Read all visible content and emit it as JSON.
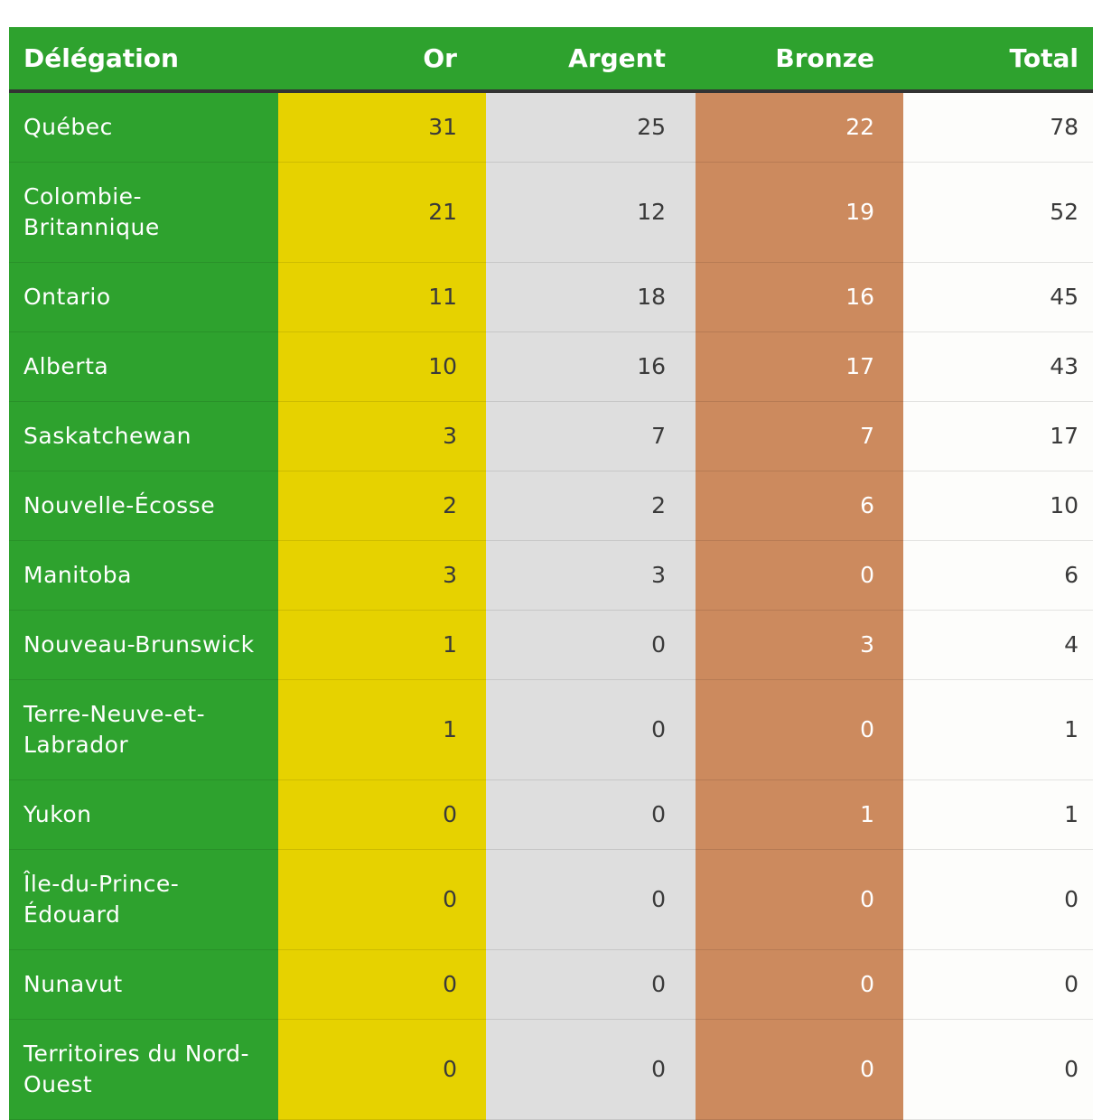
{
  "chart_data": {
    "type": "table",
    "columns": [
      "Délégation",
      "Or",
      "Argent",
      "Bronze",
      "Total"
    ],
    "rows": [
      {
        "delegation": "Québec",
        "or": 31,
        "argent": 25,
        "bronze": 22,
        "total": 78
      },
      {
        "delegation": "Colombie-Britannique",
        "or": 21,
        "argent": 12,
        "bronze": 19,
        "total": 52
      },
      {
        "delegation": "Ontario",
        "or": 11,
        "argent": 18,
        "bronze": 16,
        "total": 45
      },
      {
        "delegation": "Alberta",
        "or": 10,
        "argent": 16,
        "bronze": 17,
        "total": 43
      },
      {
        "delegation": "Saskatchewan",
        "or": 3,
        "argent": 7,
        "bronze": 7,
        "total": 17
      },
      {
        "delegation": "Nouvelle-Écosse",
        "or": 2,
        "argent": 2,
        "bronze": 6,
        "total": 10
      },
      {
        "delegation": "Manitoba",
        "or": 3,
        "argent": 3,
        "bronze": 0,
        "total": 6
      },
      {
        "delegation": "Nouveau-Brunswick",
        "or": 1,
        "argent": 0,
        "bronze": 3,
        "total": 4
      },
      {
        "delegation": "Terre-Neuve-et-Labrador",
        "or": 1,
        "argent": 0,
        "bronze": 0,
        "total": 1
      },
      {
        "delegation": "Yukon",
        "or": 0,
        "argent": 0,
        "bronze": 1,
        "total": 1
      },
      {
        "delegation": "Île-du-Prince-Édouard",
        "or": 0,
        "argent": 0,
        "bronze": 0,
        "total": 0
      },
      {
        "delegation": "Nunavut",
        "or": 0,
        "argent": 0,
        "bronze": 0,
        "total": 0
      },
      {
        "delegation": "Territoires du Nord-Ouest",
        "or": 0,
        "argent": 0,
        "bronze": 0,
        "total": 0
      }
    ]
  },
  "colors": {
    "header": "#2ea22e",
    "delegation": "#2ea22e",
    "or": "#e6d200",
    "argent": "#dedede",
    "bronze": "#cc8a5e",
    "total": "#fdfdfb"
  }
}
